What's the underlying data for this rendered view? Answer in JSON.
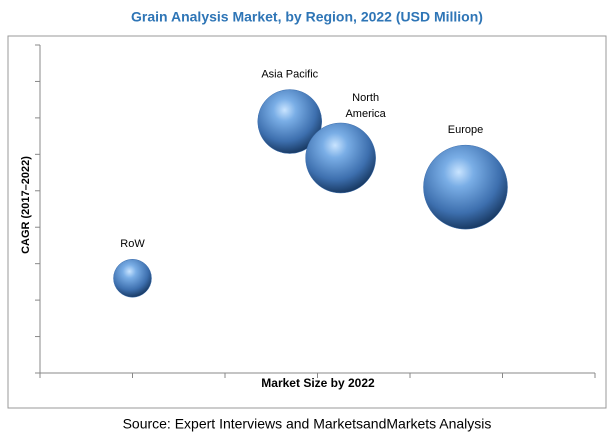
{
  "chart_data": {
    "type": "bubble",
    "title": "Grain Analysis Market, by Region, 2022 (USD Million)",
    "x_label": "Market Size by 2022",
    "y_label": "CAGR (2017–2022)",
    "source": "Source: Expert Interviews and MarketsandMarkets Analysis",
    "series": [
      {
        "name": "RoW",
        "x": 1.0,
        "y": 2.6,
        "size": 19
      },
      {
        "name": "Asia Pacific",
        "x": 2.7,
        "y": 6.9,
        "size": 32
      },
      {
        "name": "North America",
        "x": 3.25,
        "y": 5.9,
        "size": 35
      },
      {
        "name": "Europe",
        "x": 4.6,
        "y": 5.1,
        "size": 42
      }
    ],
    "color": "#3d6fae",
    "xlim": [
      0,
      6
    ],
    "xticks": [
      0,
      1,
      2,
      3,
      4,
      5,
      6
    ],
    "ylim": [
      0,
      9
    ],
    "yticks": [
      0,
      1,
      2,
      3,
      4,
      5,
      6,
      7,
      8,
      9
    ]
  }
}
